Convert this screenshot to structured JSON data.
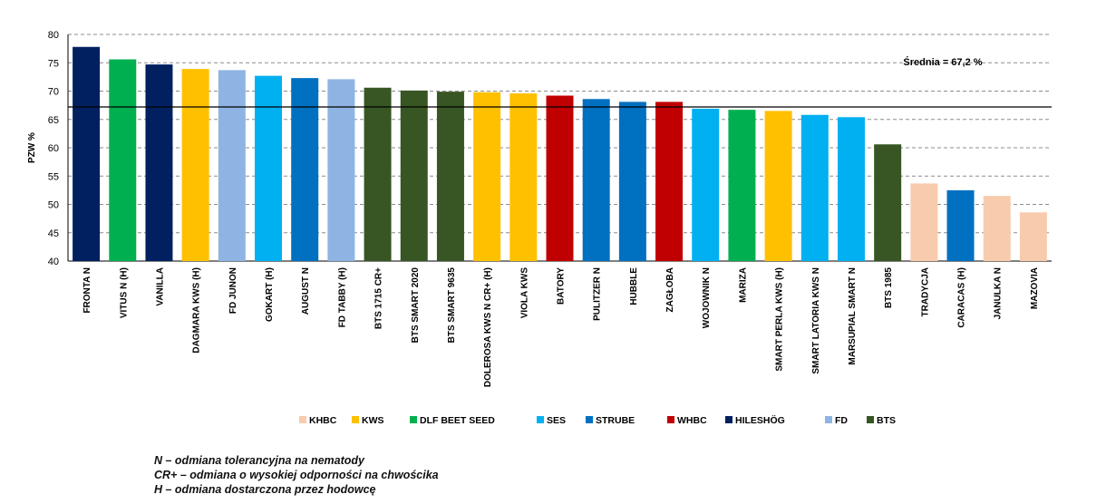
{
  "chart_data": {
    "type": "bar",
    "title": "",
    "xlabel": "",
    "ylabel": "PZW %",
    "ylim": [
      40,
      80
    ],
    "yticks": [
      40,
      45,
      50,
      55,
      60,
      65,
      70,
      75,
      80
    ],
    "grid": true,
    "legend_position": "bottom",
    "reference_line": {
      "value": 67.2,
      "label": "Średnia = 67,2 %"
    },
    "categories": [
      "FRONTA N",
      "VITUS N (H)",
      "VANILLA",
      "DAGMARA KWS (H)",
      "FD JUNON",
      "GOKART (H)",
      "AUGUST N",
      "FD TABBY (H)",
      "BTS 1715 CR+",
      "BTS SMART 2020",
      "BTS SMART 9635",
      "DOLEROSA KWS N CR+ (H)",
      "VIOLA KWS",
      "BATORY",
      "PULITZER N",
      "HUBBLE",
      "ZAGŁOBA",
      "WOJOWNIK N",
      "MARIZA",
      "SMART PERLA KWS (H)",
      "SMART LATORIA KWS N",
      "MARSUPIAL SMART N",
      "BTS 1985",
      "TRADYCJA",
      "CARACAS (H)",
      "JANULKA N",
      "MAZOVIA"
    ],
    "values": [
      77.8,
      75.6,
      74.7,
      73.9,
      73.7,
      72.7,
      72.3,
      72.1,
      70.6,
      70.1,
      69.9,
      69.8,
      69.6,
      69.2,
      68.6,
      68.1,
      68.1,
      66.9,
      66.7,
      66.5,
      65.8,
      65.4,
      60.6,
      53.7,
      52.5,
      51.5,
      48.6
    ],
    "breeders": [
      "HILESHÖG",
      "DLF BEET SEED",
      "HILESHÖG",
      "KWS",
      "FD",
      "SES",
      "STRUBE",
      "FD",
      "BTS",
      "BTS",
      "BTS",
      "KWS",
      "KWS",
      "WHBC",
      "STRUBE",
      "STRUBE",
      "WHBC",
      "SES",
      "DLF BEET SEED",
      "KWS",
      "SES",
      "SES",
      "BTS",
      "KHBC",
      "STRUBE",
      "KHBC",
      "KHBC"
    ],
    "legend": [
      {
        "name": "KHBC",
        "color": "#f8cbad"
      },
      {
        "name": "KWS",
        "color": "#ffc000"
      },
      {
        "name": "DLF BEET SEED",
        "color": "#00b050"
      },
      {
        "name": "SES",
        "color": "#00b0f0"
      },
      {
        "name": "STRUBE",
        "color": "#0070c0"
      },
      {
        "name": "WHBC",
        "color": "#c00000"
      },
      {
        "name": "HILESHÖG",
        "color": "#002060"
      },
      {
        "name": "FD",
        "color": "#8eb4e3"
      },
      {
        "name": "BTS",
        "color": "#375623"
      }
    ]
  },
  "notes": [
    "N – odmiana tolerancyjna na nematody",
    "CR+ – odmiana o wysokiej odporności na chwościka",
    "H – odmiana dostarczona przez hodowcę"
  ]
}
